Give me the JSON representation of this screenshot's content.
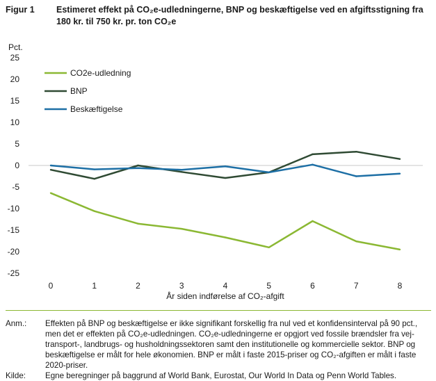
{
  "figure": {
    "number": "Figur 1",
    "title": "Estimeret effekt på CO₂e-udledningerne, BNP og beskæftigelse ved en afgiftsstigning fra 180 kr. til 750 kr. pr. ton CO₂e"
  },
  "notes": {
    "anm_label": "Anm.:",
    "anm_text": "Effekten på BNP og beskæftigelse er ikke signifikant forskellig fra nul ved et konfidensinterval på 90 pct., men det er effekten på CO₂e-udledningen. CO₂e-udledningerne er opgjort ved fossile brændsler fra vej-transport-, landbrugs- og husholdningssektoren samt den institutionelle og kommercielle sektor. BNP og beskæftigelse er målt for hele økonomien. BNP er målt i faste 2015-priser og CO₂-afgiften er målt i faste 2020-priser.",
    "kilde_label": "Kilde:",
    "kilde_text": "Egne beregninger på baggrund af World Bank, Eurostat, Our World In Data og Penn World Tables."
  },
  "chart_data": {
    "type": "line",
    "ylabel": "Pct.",
    "xlabel": "År siden indførelse af CO₂-afgift",
    "x": [
      0,
      1,
      2,
      3,
      4,
      5,
      6,
      7,
      8
    ],
    "xticks": [
      "0",
      "1",
      "2",
      "3",
      "4",
      "5",
      "6",
      "7",
      "8"
    ],
    "yticks": [
      "25",
      "20",
      "15",
      "10",
      "5",
      "0",
      "-5",
      "-10",
      "-15",
      "-20",
      "-25"
    ],
    "ylim": [
      -25,
      25
    ],
    "grid": false,
    "legend_position": "top-left",
    "series": [
      {
        "name": "CO2e-udledning",
        "color": "#8bb833",
        "values": [
          -6.4,
          -10.6,
          -13.5,
          -14.7,
          -16.7,
          -19.0,
          -12.9,
          -17.6,
          -19.5
        ]
      },
      {
        "name": "BNP",
        "color": "#2f4a33",
        "values": [
          -1.0,
          -3.1,
          0.0,
          -1.5,
          -2.9,
          -1.6,
          2.6,
          3.2,
          1.5
        ]
      },
      {
        "name": "Beskæftigelse",
        "color": "#1d6fa5",
        "values": [
          0.0,
          -0.9,
          -0.6,
          -1.0,
          -0.2,
          -1.6,
          0.2,
          -2.5,
          -1.9
        ]
      }
    ]
  }
}
